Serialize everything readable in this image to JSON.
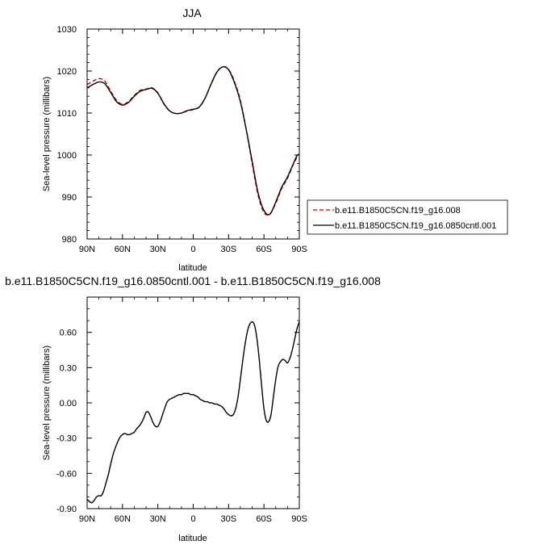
{
  "chart_data": [
    {
      "type": "line",
      "title": "JJA",
      "xlabel": "latitude",
      "ylabel": "Sea-level pressure (millibars)",
      "xlim": [
        90,
        -90
      ],
      "ylim": [
        980,
        1030
      ],
      "x_ticks": [
        90,
        60,
        30,
        0,
        -30,
        -60,
        -90
      ],
      "x_tick_labels": [
        "90N",
        "60N",
        "30N",
        "0",
        "30S",
        "60S",
        "90S"
      ],
      "y_ticks": [
        980,
        990,
        1000,
        1010,
        1020,
        1030
      ],
      "y_tick_labels": [
        "980",
        "990",
        "1000",
        "1010",
        "1020",
        "1030"
      ],
      "legend_position": "right",
      "series": [
        {
          "name": "b.e11.B1850C5CN.f19_g16.008",
          "color": "#cc0000",
          "dash": "dashed",
          "x": [
            90,
            85,
            80,
            75,
            70,
            65,
            60,
            55,
            50,
            45,
            40,
            35,
            30,
            25,
            20,
            15,
            10,
            5,
            0,
            -5,
            -10,
            -15,
            -20,
            -25,
            -30,
            -35,
            -40,
            -45,
            -50,
            -55,
            -60,
            -65,
            -70,
            -75,
            -80,
            -85,
            -88,
            -90
          ],
          "y": [
            1016.8,
            1017.6,
            1018.2,
            1017.6,
            1015.2,
            1013.0,
            1012.1,
            1012.7,
            1014.2,
            1015.4,
            1015.7,
            1016.0,
            1014.8,
            1012.2,
            1010.5,
            1009.9,
            1010.0,
            1010.5,
            1010.8,
            1011.4,
            1013.5,
            1016.8,
            1019.7,
            1021.0,
            1020.4,
            1017.5,
            1013.0,
            1006.0,
            998.0,
            990.5,
            986.3,
            986.0,
            988.5,
            992.0,
            994.5,
            997.8,
            999.4,
            999.6
          ]
        },
        {
          "name": "b.e11.B1850C5CN.f19_g16.0850cntl.001",
          "color": "#000000",
          "dash": "solid",
          "x": [
            90,
            85,
            80,
            75,
            70,
            65,
            60,
            55,
            50,
            45,
            40,
            35,
            30,
            25,
            20,
            15,
            10,
            5,
            0,
            -5,
            -10,
            -15,
            -20,
            -25,
            -30,
            -35,
            -40,
            -45,
            -50,
            -55,
            -60,
            -65,
            -70,
            -75,
            -80,
            -85,
            -88,
            -90
          ],
          "y": [
            1016.0,
            1016.8,
            1017.4,
            1017.0,
            1014.9,
            1012.7,
            1011.9,
            1012.5,
            1014.0,
            1015.2,
            1015.6,
            1015.9,
            1014.7,
            1012.3,
            1010.5,
            1009.9,
            1010.0,
            1010.6,
            1010.9,
            1011.4,
            1013.5,
            1016.8,
            1019.7,
            1021.0,
            1020.3,
            1017.2,
            1012.7,
            1006.0,
            998.5,
            991.0,
            986.8,
            985.9,
            988.8,
            992.3,
            994.8,
            998.0,
            999.8,
            1000.2
          ]
        }
      ]
    },
    {
      "type": "line",
      "title": "b.e11.B1850C5CN.f19_g16.0850cntl.001 - b.e11.B1850C5CN.f19_g16.008",
      "xlabel": "latitude",
      "ylabel": "Sea-level pressure (millibars)",
      "xlim": [
        90,
        -90
      ],
      "ylim": [
        -0.9,
        0.9
      ],
      "x_ticks": [
        90,
        60,
        30,
        0,
        -30,
        -60,
        -90
      ],
      "x_tick_labels": [
        "90N",
        "60N",
        "30N",
        "0",
        "30S",
        "60S",
        "90S"
      ],
      "y_ticks": [
        -0.9,
        -0.6,
        -0.3,
        0.0,
        0.3,
        0.6
      ],
      "y_tick_labels": [
        "-0.90",
        "-0.60",
        "-0.30",
        "0.00",
        "0.30",
        "0.60"
      ],
      "series": [
        {
          "color": "#000000",
          "dash": "solid",
          "x": [
            90,
            88,
            86,
            84,
            82,
            80,
            78,
            76,
            74,
            72,
            70,
            68,
            66,
            64,
            62,
            60,
            58,
            56,
            54,
            52,
            50,
            48,
            46,
            44,
            42,
            40,
            38,
            36,
            34,
            32,
            30,
            28,
            26,
            24,
            22,
            20,
            18,
            16,
            14,
            12,
            10,
            8,
            6,
            4,
            2,
            0,
            -2,
            -4,
            -6,
            -8,
            -10,
            -12,
            -14,
            -16,
            -18,
            -20,
            -22,
            -24,
            -26,
            -28,
            -30,
            -32,
            -34,
            -36,
            -38,
            -40,
            -42,
            -44,
            -46,
            -48,
            -50,
            -52,
            -54,
            -56,
            -58,
            -60,
            -62,
            -64,
            -66,
            -68,
            -70,
            -72,
            -74,
            -76,
            -78,
            -80,
            -82,
            -84,
            -86,
            -88,
            -90
          ],
          "y": [
            -0.82,
            -0.84,
            -0.85,
            -0.83,
            -0.8,
            -0.79,
            -0.79,
            -0.75,
            -0.68,
            -0.61,
            -0.52,
            -0.44,
            -0.38,
            -0.33,
            -0.29,
            -0.27,
            -0.26,
            -0.27,
            -0.27,
            -0.26,
            -0.25,
            -0.22,
            -0.2,
            -0.17,
            -0.13,
            -0.08,
            -0.08,
            -0.12,
            -0.17,
            -0.2,
            -0.2,
            -0.16,
            -0.1,
            -0.04,
            0.01,
            0.03,
            0.04,
            0.05,
            0.06,
            0.07,
            0.07,
            0.08,
            0.08,
            0.08,
            0.07,
            0.07,
            0.06,
            0.05,
            0.03,
            0.02,
            0.01,
            0.01,
            0.0,
            0.0,
            -0.01,
            -0.01,
            -0.02,
            -0.03,
            -0.05,
            -0.08,
            -0.1,
            -0.11,
            -0.1,
            -0.05,
            0.05,
            0.2,
            0.36,
            0.5,
            0.61,
            0.67,
            0.69,
            0.66,
            0.55,
            0.37,
            0.15,
            -0.05,
            -0.15,
            -0.16,
            -0.1,
            0.05,
            0.2,
            0.31,
            0.35,
            0.37,
            0.36,
            0.34,
            0.38,
            0.45,
            0.54,
            0.63,
            0.69
          ]
        }
      ]
    }
  ]
}
